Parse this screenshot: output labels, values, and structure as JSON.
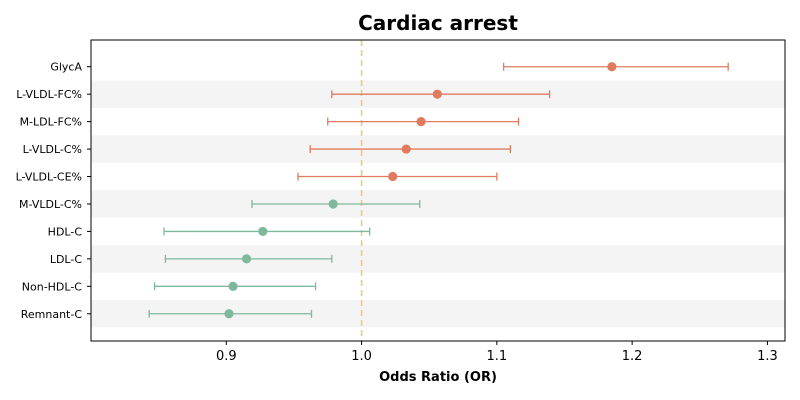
{
  "chart_data": {
    "type": "forest",
    "title": "Cardiac arrest",
    "xlabel": "Odds Ratio (OR)",
    "ylabel": "",
    "xlim": [
      0.8,
      1.313
    ],
    "xticks": [
      0.9,
      1.0,
      1.1,
      1.2,
      1.3
    ],
    "xtick_labels": [
      "0.9",
      "1.0",
      "1.1",
      "1.2",
      "1.3"
    ],
    "reference_line": 1.0,
    "grid": false,
    "series": [
      {
        "name": "GlycA",
        "or": 1.185,
        "lower": 1.105,
        "upper": 1.271,
        "group": "positive"
      },
      {
        "name": "L-VLDL-FC%",
        "or": 1.056,
        "lower": 0.978,
        "upper": 1.139,
        "group": "positive"
      },
      {
        "name": "M-LDL-FC%",
        "or": 1.044,
        "lower": 0.975,
        "upper": 1.116,
        "group": "positive"
      },
      {
        "name": "L-VLDL-C%",
        "or": 1.033,
        "lower": 0.962,
        "upper": 1.11,
        "group": "positive"
      },
      {
        "name": "L-VLDL-CE%",
        "or": 1.023,
        "lower": 0.953,
        "upper": 1.1,
        "group": "positive"
      },
      {
        "name": "M-VLDL-C%",
        "or": 0.979,
        "lower": 0.919,
        "upper": 1.043,
        "group": "negative"
      },
      {
        "name": "HDL-C",
        "or": 0.927,
        "lower": 0.854,
        "upper": 1.006,
        "group": "negative"
      },
      {
        "name": "LDL-C",
        "or": 0.915,
        "lower": 0.855,
        "upper": 0.978,
        "group": "negative"
      },
      {
        "name": "Non-HDL-C",
        "or": 0.905,
        "lower": 0.847,
        "upper": 0.966,
        "group": "negative"
      },
      {
        "name": "Remnant-C",
        "or": 0.902,
        "lower": 0.843,
        "upper": 0.963,
        "group": "negative"
      }
    ]
  },
  "colors": {
    "positive": "#e07b5f",
    "negative": "#7fb89c",
    "reference": "#f0c97a",
    "stripe": "#f4f4f4"
  }
}
